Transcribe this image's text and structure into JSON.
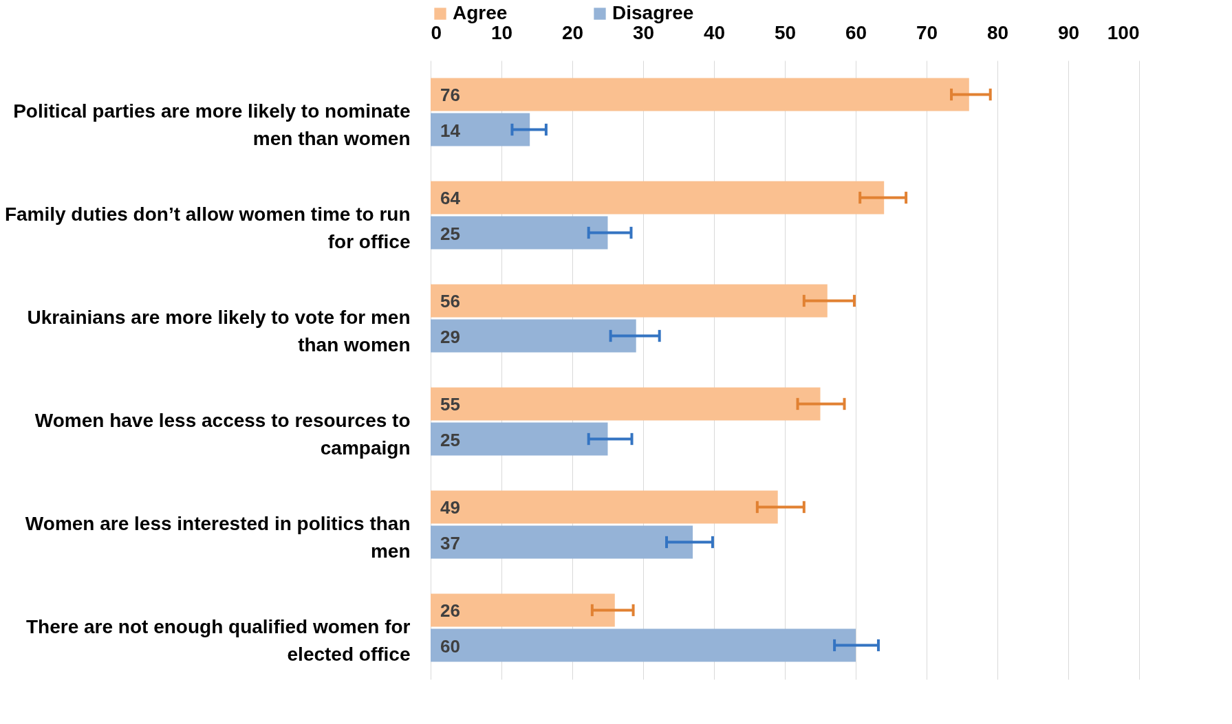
{
  "chart_data": {
    "type": "bar",
    "orientation": "horizontal",
    "categories": [
      "Political parties are more likely to nominate men than women",
      "Family duties don’t allow women time to run for office",
      "Ukrainians are more likely to vote for men than women",
      "Women have less access to resources to campaign",
      "Women are less interested in politics than men",
      "There are not enough qualified women for elected office"
    ],
    "series": [
      {
        "name": "Agree",
        "color": "#fac090",
        "values": [
          76,
          64,
          56,
          55,
          49,
          26
        ],
        "errors": [
          [
            73.5,
            79
          ],
          [
            60.6,
            67.1
          ],
          [
            52.7,
            59.8
          ],
          [
            51.8,
            58.4
          ],
          [
            46.1,
            52.7
          ],
          [
            22.8,
            28.6
          ]
        ]
      },
      {
        "name": "Disagree",
        "color": "#95b3d7",
        "values": [
          14,
          25,
          29,
          25,
          37,
          60
        ],
        "errors": [
          [
            11.5,
            16.3
          ],
          [
            22.3,
            28.3
          ],
          [
            25.4,
            32.3
          ],
          [
            22.3,
            28.4
          ],
          [
            33.3,
            39.8
          ],
          [
            57,
            63.2
          ]
        ]
      }
    ],
    "xlim": [
      0,
      100
    ],
    "xticks": [
      0,
      10,
      20,
      30,
      40,
      50,
      60,
      70,
      80,
      90,
      100
    ],
    "grid": "x",
    "legend": "top",
    "data_labels": true
  }
}
